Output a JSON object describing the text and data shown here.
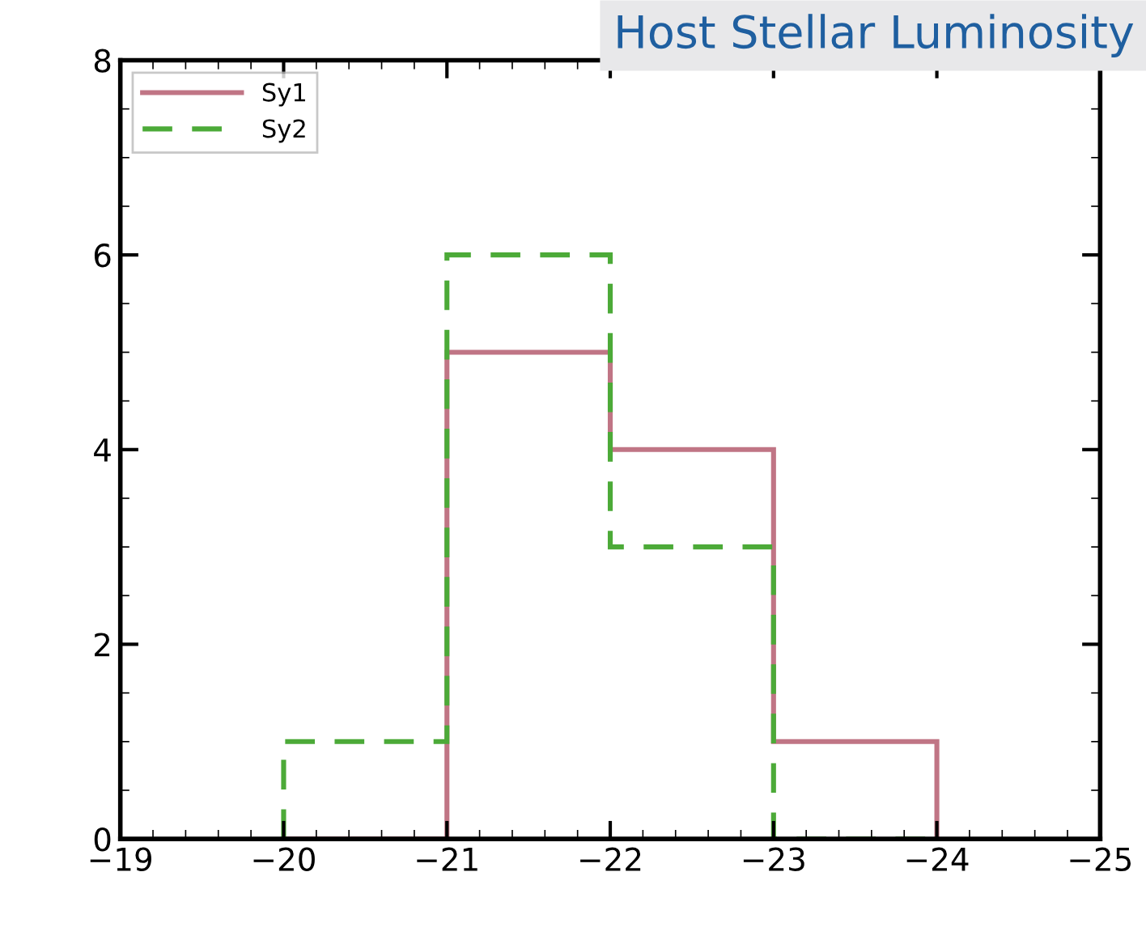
{
  "chart_data": {
    "type": "histogram",
    "title": "Host Stellar Luminosity",
    "bins": [
      -20,
      -21,
      -22,
      -23,
      -24
    ],
    "series": [
      {
        "name": "Sy1",
        "color": "#c07585",
        "values": [
          0,
          5,
          4,
          1
        ],
        "line_style": "solid"
      },
      {
        "name": "Sy2",
        "color": "#4caa38",
        "values": [
          1,
          6,
          3,
          0
        ],
        "line_style": "dashed"
      }
    ],
    "xlim": [
      -19,
      -25
    ],
    "xticks": [
      {
        "value": -19,
        "label": "−19"
      },
      {
        "value": -20,
        "label": "−20"
      },
      {
        "value": -21,
        "label": "−21"
      },
      {
        "value": -22,
        "label": "−22"
      },
      {
        "value": -23,
        "label": "−23"
      },
      {
        "value": -24,
        "label": "−24"
      },
      {
        "value": -25,
        "label": "−25"
      }
    ],
    "ylim": [
      0,
      8
    ],
    "yticks": [
      0,
      2,
      4,
      6,
      8
    ],
    "grid": false,
    "legend": "top left"
  }
}
